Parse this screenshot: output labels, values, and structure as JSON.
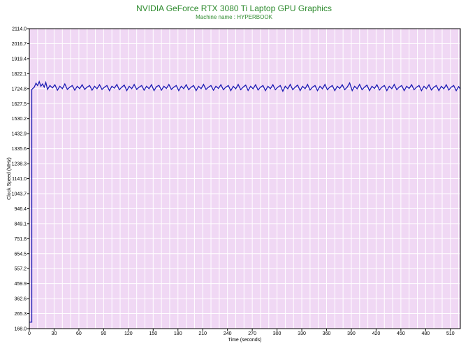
{
  "chart_data": {
    "type": "line",
    "title": "NVIDIA GeForce RTX 3080 Ti Laptop GPU Graphics",
    "subtitle": "Machine name : HYPERBOOK",
    "xlabel": "Time (seconds)",
    "ylabel": "Clock Speed (MHz)",
    "xlim": [
      0,
      522
    ],
    "ylim": [
      168.0,
      2114.0
    ],
    "x_ticks": [
      0,
      30,
      60,
      90,
      120,
      150,
      180,
      210,
      240,
      270,
      300,
      330,
      360,
      390,
      420,
      450,
      480,
      510
    ],
    "y_ticks": [
      "2114.0",
      "2016.7",
      "1919.4",
      "1822.1",
      "1724.8",
      "1627.5",
      "1530.2",
      "1432.9",
      "1335.6",
      "1238.3",
      "1141.0",
      "1043.7",
      "946.4",
      "849.1",
      "751.8",
      "654.5",
      "557.2",
      "459.9",
      "362.6",
      "265.3",
      "168.0"
    ],
    "grid": true,
    "background_color": "#f0d8f4",
    "grid_color": "#ffffff",
    "line_color": "#1c1cb4",
    "title_color": "#2e8b2e",
    "series": [
      {
        "points": [
          [
            0,
            210
          ],
          [
            3,
            210
          ],
          [
            3,
            1720
          ],
          [
            6,
            1735
          ],
          [
            8,
            1760
          ],
          [
            10,
            1745
          ],
          [
            12,
            1770
          ],
          [
            14,
            1740
          ],
          [
            16,
            1755
          ],
          [
            18,
            1735
          ],
          [
            20,
            1765
          ],
          [
            22,
            1720
          ],
          [
            25,
            1745
          ],
          [
            28,
            1730
          ],
          [
            31,
            1750
          ],
          [
            34,
            1715
          ],
          [
            37,
            1740
          ],
          [
            40,
            1725
          ],
          [
            43,
            1755
          ],
          [
            46,
            1720
          ],
          [
            49,
            1735
          ],
          [
            52,
            1745
          ],
          [
            55,
            1715
          ],
          [
            58,
            1740
          ],
          [
            61,
            1725
          ],
          [
            64,
            1750
          ],
          [
            67,
            1720
          ],
          [
            70,
            1735
          ],
          [
            73,
            1745
          ],
          [
            76,
            1715
          ],
          [
            79,
            1740
          ],
          [
            82,
            1725
          ],
          [
            85,
            1750
          ],
          [
            88,
            1720
          ],
          [
            91,
            1735
          ],
          [
            94,
            1745
          ],
          [
            97,
            1712
          ],
          [
            100,
            1740
          ],
          [
            103,
            1728
          ],
          [
            106,
            1752
          ],
          [
            109,
            1718
          ],
          [
            112,
            1735
          ],
          [
            115,
            1748
          ],
          [
            118,
            1712
          ],
          [
            121,
            1740
          ],
          [
            124,
            1725
          ],
          [
            127,
            1752
          ],
          [
            130,
            1720
          ],
          [
            133,
            1735
          ],
          [
            136,
            1745
          ],
          [
            139,
            1715
          ],
          [
            142,
            1740
          ],
          [
            145,
            1725
          ],
          [
            148,
            1750
          ],
          [
            151,
            1712
          ],
          [
            154,
            1738
          ],
          [
            157,
            1746
          ],
          [
            160,
            1715
          ],
          [
            163,
            1740
          ],
          [
            166,
            1726
          ],
          [
            169,
            1752
          ],
          [
            172,
            1720
          ],
          [
            175,
            1735
          ],
          [
            178,
            1745
          ],
          [
            181,
            1712
          ],
          [
            184,
            1740
          ],
          [
            187,
            1725
          ],
          [
            190,
            1750
          ],
          [
            193,
            1718
          ],
          [
            196,
            1735
          ],
          [
            199,
            1745
          ],
          [
            202,
            1712
          ],
          [
            205,
            1740
          ],
          [
            208,
            1725
          ],
          [
            211,
            1752
          ],
          [
            214,
            1720
          ],
          [
            217,
            1735
          ],
          [
            220,
            1745
          ],
          [
            223,
            1715
          ],
          [
            226,
            1740
          ],
          [
            229,
            1726
          ],
          [
            232,
            1750
          ],
          [
            235,
            1718
          ],
          [
            238,
            1735
          ],
          [
            241,
            1745
          ],
          [
            244,
            1712
          ],
          [
            247,
            1740
          ],
          [
            250,
            1724
          ],
          [
            253,
            1752
          ],
          [
            256,
            1718
          ],
          [
            259,
            1735
          ],
          [
            262,
            1748
          ],
          [
            265,
            1713
          ],
          [
            268,
            1740
          ],
          [
            271,
            1724
          ],
          [
            274,
            1750
          ],
          [
            277,
            1716
          ],
          [
            280,
            1735
          ],
          [
            283,
            1745
          ],
          [
            286,
            1712
          ],
          [
            289,
            1740
          ],
          [
            292,
            1725
          ],
          [
            295,
            1750
          ],
          [
            298,
            1718
          ],
          [
            301,
            1735
          ],
          [
            304,
            1745
          ],
          [
            307,
            1708
          ],
          [
            310,
            1740
          ],
          [
            313,
            1724
          ],
          [
            316,
            1752
          ],
          [
            319,
            1718
          ],
          [
            322,
            1735
          ],
          [
            325,
            1748
          ],
          [
            328,
            1712
          ],
          [
            331,
            1740
          ],
          [
            334,
            1725
          ],
          [
            337,
            1752
          ],
          [
            340,
            1716
          ],
          [
            343,
            1735
          ],
          [
            346,
            1745
          ],
          [
            349,
            1712
          ],
          [
            352,
            1740
          ],
          [
            355,
            1724
          ],
          [
            358,
            1752
          ],
          [
            361,
            1718
          ],
          [
            364,
            1735
          ],
          [
            367,
            1745
          ],
          [
            370,
            1712
          ],
          [
            373,
            1740
          ],
          [
            376,
            1726
          ],
          [
            379,
            1750
          ],
          [
            382,
            1718
          ],
          [
            385,
            1735
          ],
          [
            388,
            1762
          ],
          [
            391,
            1712
          ],
          [
            394,
            1740
          ],
          [
            397,
            1724
          ],
          [
            400,
            1752
          ],
          [
            403,
            1718
          ],
          [
            406,
            1735
          ],
          [
            409,
            1748
          ],
          [
            412,
            1712
          ],
          [
            415,
            1740
          ],
          [
            418,
            1726
          ],
          [
            421,
            1750
          ],
          [
            424,
            1716
          ],
          [
            427,
            1735
          ],
          [
            430,
            1745
          ],
          [
            433,
            1712
          ],
          [
            436,
            1740
          ],
          [
            439,
            1725
          ],
          [
            442,
            1752
          ],
          [
            445,
            1718
          ],
          [
            448,
            1735
          ],
          [
            451,
            1745
          ],
          [
            454,
            1712
          ],
          [
            457,
            1740
          ],
          [
            460,
            1726
          ],
          [
            463,
            1750
          ],
          [
            466,
            1718
          ],
          [
            469,
            1735
          ],
          [
            472,
            1745
          ],
          [
            475,
            1712
          ],
          [
            478,
            1740
          ],
          [
            481,
            1725
          ],
          [
            484,
            1750
          ],
          [
            487,
            1716
          ],
          [
            490,
            1735
          ],
          [
            493,
            1745
          ],
          [
            496,
            1712
          ],
          [
            499,
            1740
          ],
          [
            502,
            1724
          ],
          [
            505,
            1750
          ],
          [
            508,
            1716
          ],
          [
            511,
            1735
          ],
          [
            514,
            1745
          ],
          [
            517,
            1712
          ],
          [
            520,
            1738
          ],
          [
            522,
            1722
          ]
        ]
      }
    ]
  }
}
